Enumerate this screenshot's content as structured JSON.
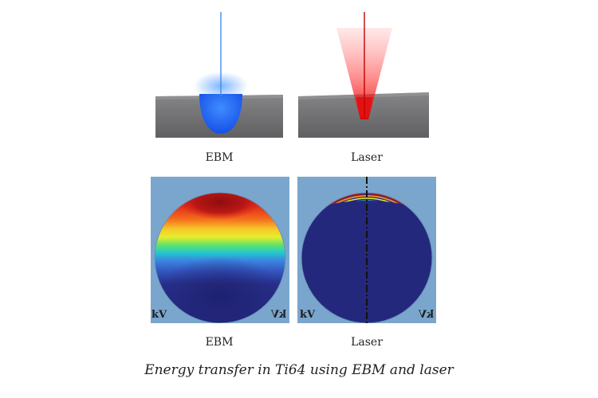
{
  "panels": {
    "top_left_label": "EBM",
    "top_right_label": "Laser",
    "bottom_left_label": "EBM",
    "bottom_right_label": "Laser",
    "corner_mark": "kV"
  },
  "caption": "Energy transfer in Ti64 using EBM and laser",
  "colors": {
    "ebm_beam": "#3a8ef0",
    "laser_beam": "#e02020",
    "substrate": "#6e6e70",
    "map_background": "#7aa6cd",
    "cold": "#24287a",
    "hot": "#b01414"
  }
}
